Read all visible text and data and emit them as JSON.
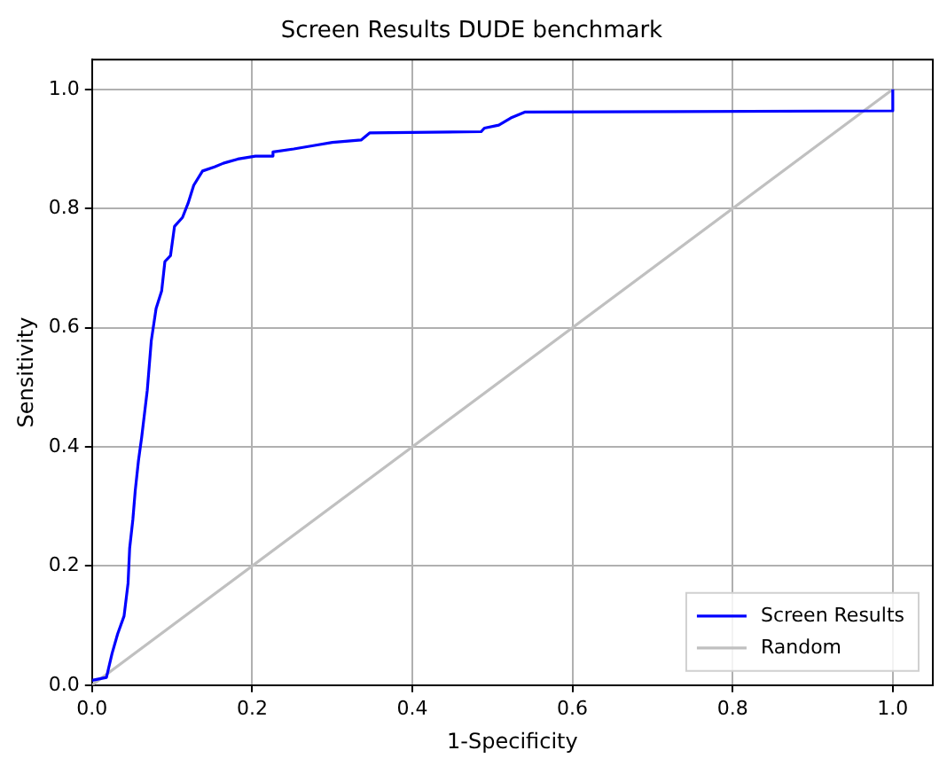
{
  "chart_data": {
    "type": "line",
    "title": "Screen Results DUDE benchmark",
    "xlabel": "1-Specificity",
    "ylabel": "Sensitivity",
    "series": [
      {
        "name": "Screen Results",
        "color": "#0000ff",
        "x": [
          0,
          0.018,
          0.025,
          0.032,
          0.04,
          0.045,
          0.047,
          0.051,
          0.054,
          0.058,
          0.062,
          0.069,
          0.074,
          0.08,
          0.087,
          0.091,
          0.098,
          0.103,
          0.113,
          0.12,
          0.127,
          0.138,
          0.153,
          0.164,
          0.182,
          0.204,
          0.226,
          0.226,
          0.252,
          0.278,
          0.3,
          0.336,
          0.347,
          0.486,
          0.49,
          0.508,
          0.523,
          0.541,
          1.0,
          1.0
        ],
        "values": [
          0.008,
          0.013,
          0.053,
          0.086,
          0.116,
          0.171,
          0.23,
          0.278,
          0.327,
          0.377,
          0.416,
          0.495,
          0.578,
          0.632,
          0.662,
          0.711,
          0.721,
          0.77,
          0.785,
          0.809,
          0.839,
          0.863,
          0.87,
          0.876,
          0.883,
          0.888,
          0.888,
          0.895,
          0.9,
          0.906,
          0.911,
          0.915,
          0.927,
          0.929,
          0.935,
          0.94,
          0.952,
          0.962,
          0.964,
          1.0
        ]
      },
      {
        "name": "Random",
        "color": "#c0c0c0",
        "x": [
          0,
          1
        ],
        "values": [
          0,
          1
        ]
      }
    ],
    "xlim": [
      0,
      1.05
    ],
    "ylim": [
      0,
      1.05
    ],
    "xticks": [
      {
        "value": 0,
        "label": "0.0"
      },
      {
        "value": 0.2,
        "label": "0.2"
      },
      {
        "value": 0.4,
        "label": "0.4"
      },
      {
        "value": 0.6,
        "label": "0.6"
      },
      {
        "value": 0.8,
        "label": "0.8"
      },
      {
        "value": 1,
        "label": "1.0"
      }
    ],
    "yticks": [
      {
        "value": 0,
        "label": "0.0"
      },
      {
        "value": 0.2,
        "label": "0.2"
      },
      {
        "value": 0.4,
        "label": "0.4"
      },
      {
        "value": 0.6,
        "label": "0.6"
      },
      {
        "value": 0.8,
        "label": "0.8"
      },
      {
        "value": 1,
        "label": "1.0"
      }
    ],
    "grid": true,
    "legend": "bottom right",
    "marker": "none",
    "line_style": "solid"
  }
}
